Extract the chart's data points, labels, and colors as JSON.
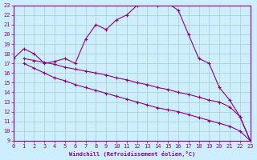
{
  "xlabel": "Windchill (Refroidissement éolien,°C)",
  "bg_color": "#cceeff",
  "grid_color": "#aaccbb",
  "line_color": "#880088",
  "xlim": [
    0,
    23
  ],
  "ylim": [
    9,
    23
  ],
  "xticks": [
    0,
    1,
    2,
    3,
    4,
    5,
    6,
    7,
    8,
    9,
    10,
    11,
    12,
    13,
    14,
    15,
    16,
    17,
    18,
    19,
    20,
    21,
    22,
    23
  ],
  "yticks": [
    9,
    10,
    11,
    12,
    13,
    14,
    15,
    16,
    17,
    18,
    19,
    20,
    21,
    22,
    23
  ],
  "series": [
    {
      "x": [
        0,
        1,
        2,
        3,
        4,
        5,
        6,
        7,
        8,
        9,
        10,
        11,
        12,
        13,
        14,
        15,
        16,
        17,
        18,
        19,
        20,
        21,
        22,
        23
      ],
      "y": [
        17.5,
        18.5,
        18.0,
        17.0,
        17.2,
        17.5,
        17.0,
        19.5,
        21.0,
        20.5,
        21.5,
        22.0,
        23.0,
        23.2,
        23.0,
        23.2,
        22.5,
        20.0,
        17.5,
        17.0,
        14.5,
        13.2,
        11.5,
        9.0
      ]
    },
    {
      "x": [
        1,
        2,
        3,
        4,
        5,
        6,
        7,
        8,
        9,
        10,
        11,
        12,
        13,
        14,
        15,
        16,
        17,
        18,
        19,
        20,
        21,
        22,
        23
      ],
      "y": [
        17.5,
        17.3,
        17.1,
        16.9,
        16.6,
        16.4,
        16.2,
        16.0,
        15.8,
        15.5,
        15.3,
        15.0,
        14.8,
        14.5,
        14.3,
        14.0,
        13.8,
        13.5,
        13.2,
        13.0,
        12.5,
        11.5,
        9.0
      ]
    },
    {
      "x": [
        1,
        2,
        3,
        4,
        5,
        6,
        7,
        8,
        9,
        10,
        11,
        12,
        13,
        14,
        15,
        16,
        17,
        18,
        19,
        20,
        21,
        22,
        23
      ],
      "y": [
        17.0,
        16.5,
        16.0,
        15.5,
        15.2,
        14.8,
        14.5,
        14.2,
        13.9,
        13.6,
        13.3,
        13.0,
        12.7,
        12.4,
        12.2,
        12.0,
        11.7,
        11.4,
        11.1,
        10.8,
        10.5,
        10.0,
        9.0
      ]
    }
  ]
}
